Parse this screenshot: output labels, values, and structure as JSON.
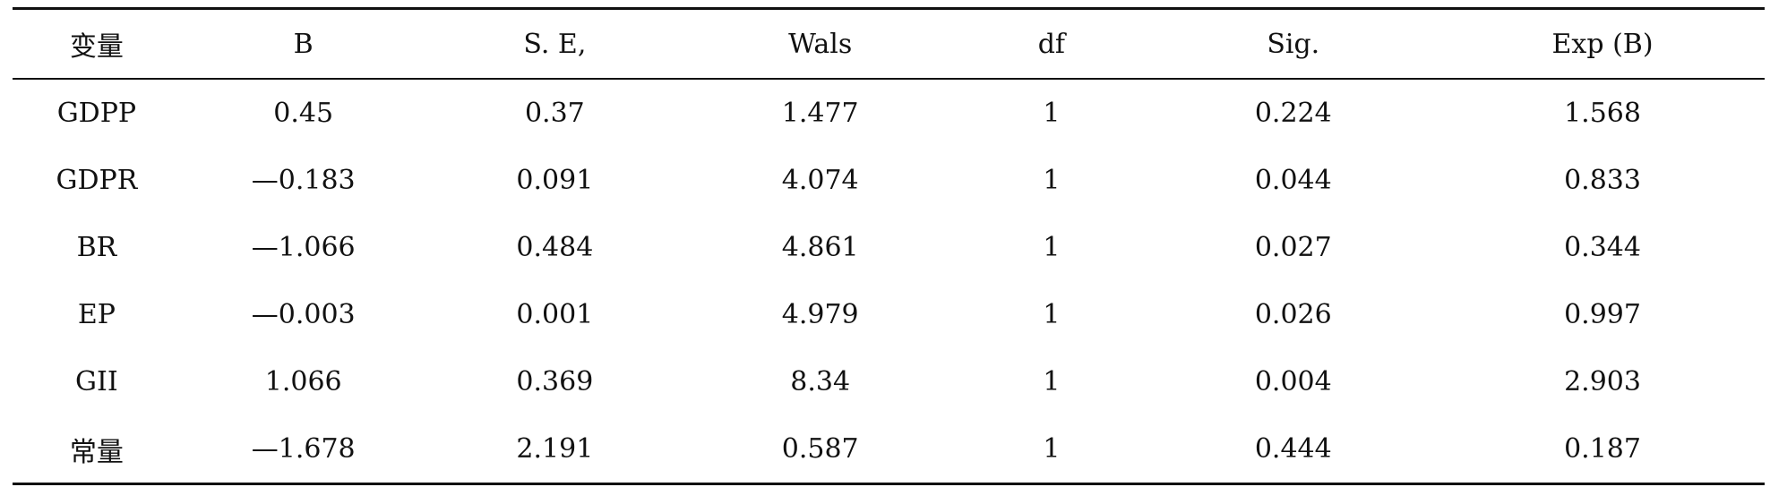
{
  "table": {
    "headers": [
      "变量",
      "B",
      "S. E,",
      "Wals",
      "df",
      "Sig.",
      "Exp (B)"
    ],
    "rows": [
      [
        "GDPP",
        "0.45",
        "0.37",
        "1.477",
        "1",
        "0.224",
        "1.568"
      ],
      [
        "GDPR",
        "—0.183",
        "0.091",
        "4.074",
        "1",
        "0.044",
        "0.833"
      ],
      [
        "BR",
        "—1.066",
        "0.484",
        "4.861",
        "1",
        "0.027",
        "0.344"
      ],
      [
        "EP",
        "—0.003",
        "0.001",
        "4.979",
        "1",
        "0.026",
        "0.997"
      ],
      [
        "GII",
        "1.066",
        "0.369",
        "8.34",
        "1",
        "0.004",
        "2.903"
      ],
      [
        "常量",
        "—1.678",
        "2.191",
        "0.587",
        "1",
        "0.444",
        "0.187"
      ]
    ]
  }
}
